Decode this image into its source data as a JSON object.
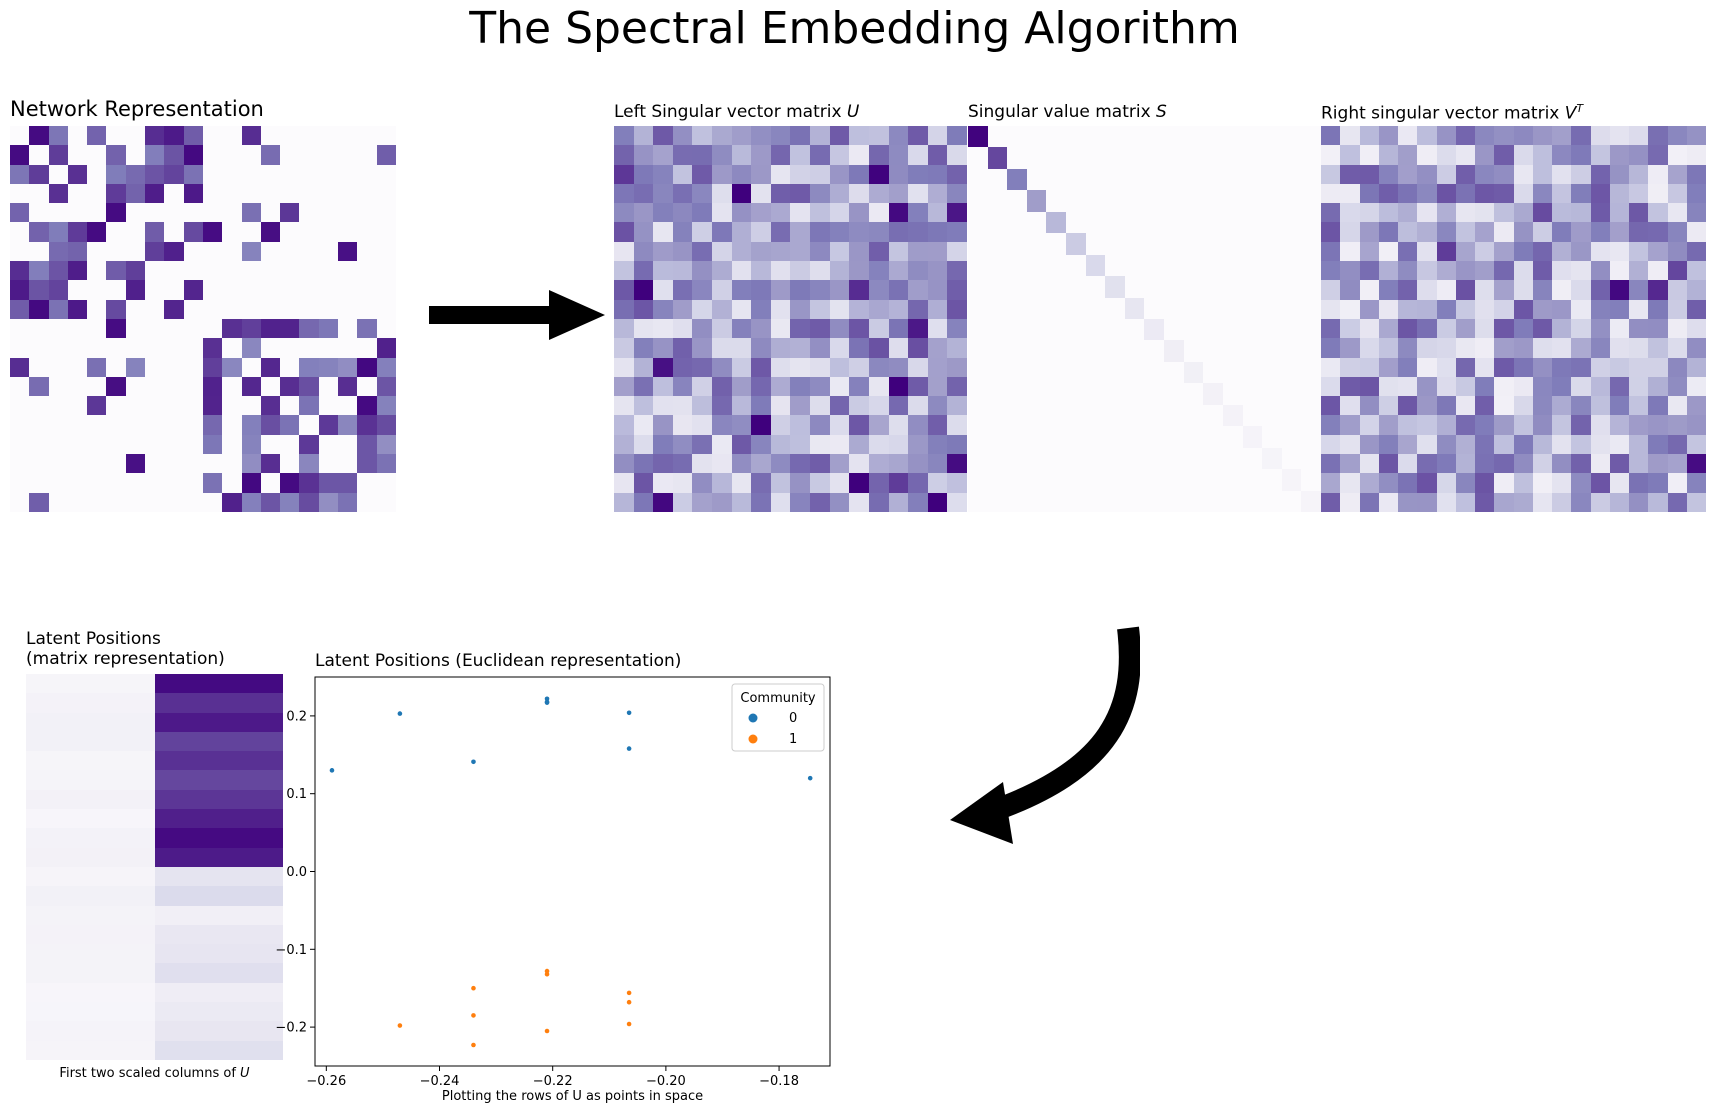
{
  "title": "The Spectral Embedding Algorithm",
  "panels": {
    "network": {
      "title": "Network Representation"
    },
    "u": {
      "title_prefix": "Left Singular vector matrix ",
      "title_sym": "U"
    },
    "s": {
      "title_prefix": "Singular value matrix ",
      "title_sym": "S"
    },
    "vt": {
      "title_prefix": "Right singular vector matrix ",
      "title_sym": "V",
      "title_sup": "T"
    },
    "latent_matrix": {
      "title_line1": "Latent Positions",
      "title_line2": "(matrix representation)",
      "xlabel_prefix": "First two scaled columns of ",
      "xlabel_sym": "U"
    }
  },
  "colors": {
    "colormap": "Purples",
    "community_0": "#1f77b4",
    "community_1": "#ff7f0e",
    "arrow": "#000000"
  },
  "chart_data": {
    "type": "scatter",
    "title": "Latent Positions (Euclidean representation)",
    "xlabel": "Plotting the rows of U as points in space",
    "ylabel": "",
    "xlim": [
      -0.262,
      -0.171
    ],
    "ylim": [
      -0.25,
      0.25
    ],
    "xticks": [
      -0.26,
      -0.24,
      -0.22,
      -0.2,
      -0.18
    ],
    "yticks": [
      0.2,
      0.1,
      0.0,
      -0.1,
      -0.2
    ],
    "legend": {
      "title": "Community",
      "placement": "top-right",
      "entries": [
        "0",
        "1"
      ]
    },
    "series": [
      {
        "name": "0",
        "color": "#1f77b4",
        "points": [
          [
            -0.259,
            0.13
          ],
          [
            -0.247,
            0.203
          ],
          [
            -0.234,
            0.141
          ],
          [
            -0.221,
            0.222
          ],
          [
            -0.221,
            0.218
          ],
          [
            -0.221,
            0.217
          ],
          [
            -0.2065,
            0.204
          ],
          [
            -0.2065,
            0.158
          ],
          [
            -0.1745,
            0.12
          ]
        ]
      },
      {
        "name": "1",
        "color": "#ff7f0e",
        "points": [
          [
            -0.247,
            -0.198
          ],
          [
            -0.234,
            -0.15
          ],
          [
            -0.234,
            -0.185
          ],
          [
            -0.234,
            -0.223
          ],
          [
            -0.221,
            -0.128
          ],
          [
            -0.221,
            -0.132
          ],
          [
            -0.221,
            -0.205
          ],
          [
            -0.2065,
            -0.156
          ],
          [
            -0.2065,
            -0.168
          ],
          [
            -0.2065,
            -0.196
          ]
        ]
      }
    ]
  }
}
